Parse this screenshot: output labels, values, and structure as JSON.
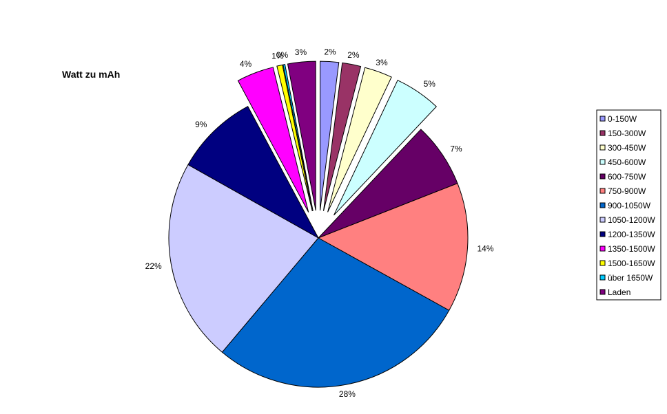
{
  "chart_data": {
    "type": "pie",
    "title": "Watt zu mAh",
    "legend_position": "right",
    "slices": [
      {
        "label": "0-150W",
        "value": 2,
        "pct_label": "2%",
        "color": "#9999ff",
        "exploded": true
      },
      {
        "label": "150-300W",
        "value": 2,
        "pct_label": "2%",
        "color": "#993366",
        "exploded": true
      },
      {
        "label": "300-450W",
        "value": 3,
        "pct_label": "3%",
        "color": "#ffffcc",
        "exploded": true
      },
      {
        "label": "450-600W",
        "value": 5,
        "pct_label": "5%",
        "color": "#ccffff",
        "exploded": true
      },
      {
        "label": "600-750W",
        "value": 7,
        "pct_label": "7%",
        "color": "#660066",
        "exploded": false
      },
      {
        "label": "750-900W",
        "value": 14,
        "pct_label": "14%",
        "color": "#ff8080",
        "exploded": false
      },
      {
        "label": "900-1050W",
        "value": 28,
        "pct_label": "28%",
        "color": "#0066cc",
        "exploded": false
      },
      {
        "label": "1050-1200W",
        "value": 22,
        "pct_label": "22%",
        "color": "#ccccff",
        "exploded": false
      },
      {
        "label": "1200-1350W",
        "value": 9,
        "pct_label": "9%",
        "color": "#000080",
        "exploded": false
      },
      {
        "label": "1350-1500W",
        "value": 4,
        "pct_label": "4%",
        "color": "#ff00ff",
        "exploded": true
      },
      {
        "label": "1500-1650W",
        "value": 0.6,
        "pct_label": "1%",
        "color": "#ffff00",
        "exploded": true
      },
      {
        "label": "über 1650W",
        "value": 0.2,
        "pct_label": "0%",
        "color": "#00ccff",
        "exploded": true
      },
      {
        "label": "Laden",
        "value": 3,
        "pct_label": "3%",
        "color": "#800080",
        "exploded": true
      }
    ]
  }
}
